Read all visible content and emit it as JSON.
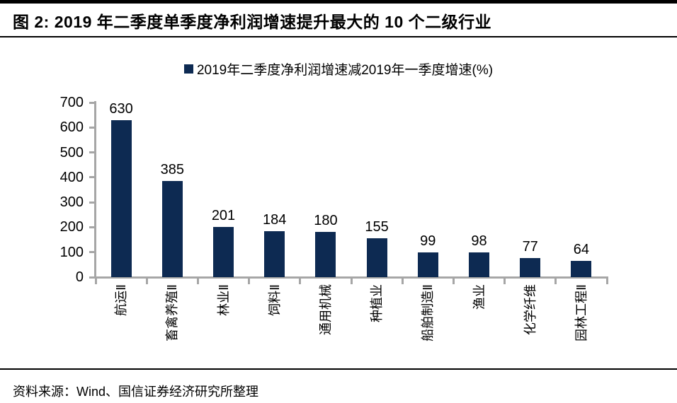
{
  "page": {
    "title": "图  2:  2019 年二季度单季度净利润增速提升最大的 10 个二级行业",
    "source": "资料来源：Wind、国信证券经济研究所整理"
  },
  "chart_data": {
    "type": "bar",
    "legend": "2019年二季度净利润增速减2019年一季度增速(%)",
    "legend_position": "top-center",
    "categories": [
      "航运Ⅱ",
      "畜禽养殖Ⅱ",
      "林业Ⅱ",
      "饲料Ⅱ",
      "通用机械",
      "种植业",
      "船舶制造Ⅱ",
      "渔业",
      "化学纤维",
      "园林工程Ⅱ"
    ],
    "values": [
      630,
      385,
      201,
      184,
      180,
      155,
      99,
      98,
      77,
      64
    ],
    "data_labels": [
      630,
      385,
      201,
      184,
      180,
      155,
      99,
      98,
      77,
      64
    ],
    "xlabel": "",
    "ylabel": "",
    "ylim": [
      0,
      700
    ],
    "yticks": [
      0,
      100,
      200,
      300,
      400,
      500,
      600,
      700
    ],
    "grid": false
  },
  "colors": {
    "bar": "#0D2A52",
    "axis": "#A6A6A6",
    "text": "#000000",
    "rule": "#000000",
    "background": "#FFFFFF"
  }
}
